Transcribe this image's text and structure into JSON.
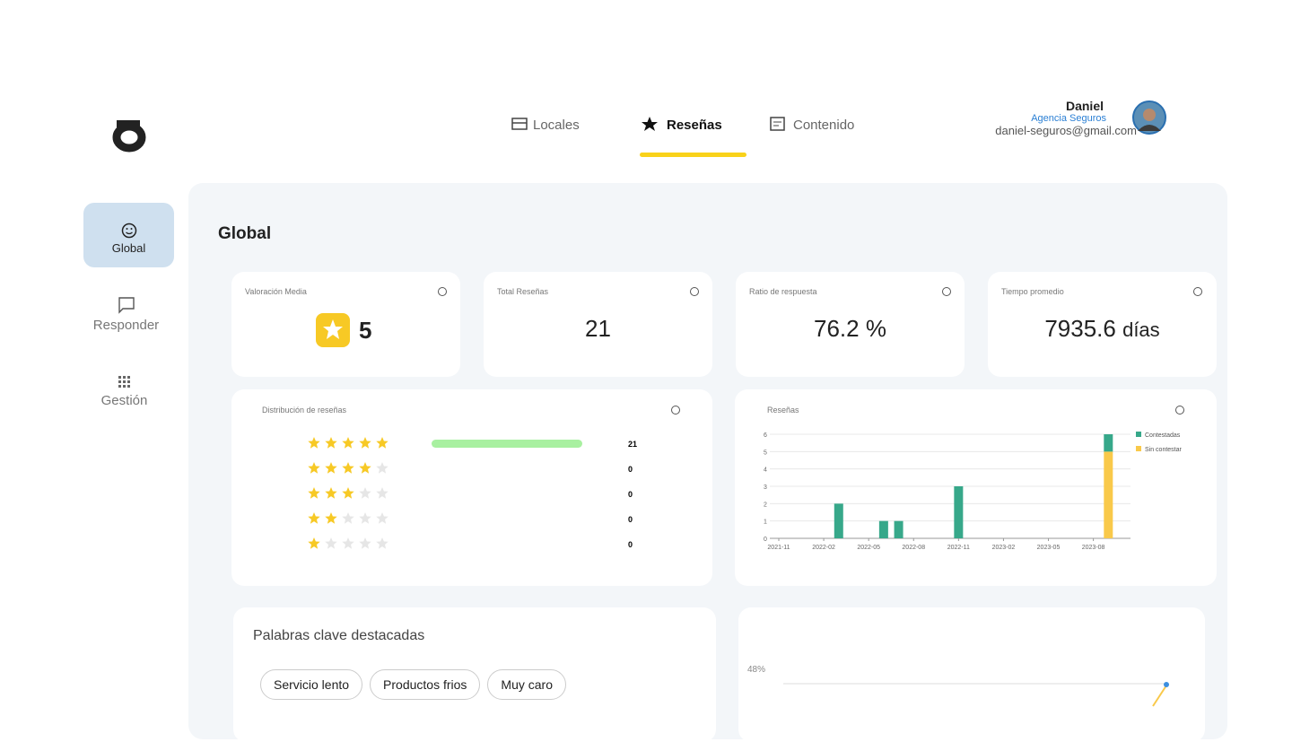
{
  "nav": {
    "tabs": [
      "Locales",
      "Reseñas",
      "Contenido"
    ],
    "active": 1
  },
  "user": {
    "name": "Daniel",
    "company": "Agencia Seguros",
    "email": "daniel-seguros@gmail.com"
  },
  "sidebar": {
    "items": [
      "Global",
      "Responder",
      "Gestión"
    ],
    "active": 0
  },
  "page": {
    "title": "Global"
  },
  "kpis": [
    {
      "label": "Valoración Media",
      "value": "5"
    },
    {
      "label": "Total Reseñas",
      "value": "21"
    },
    {
      "label": "Ratio de respuesta",
      "value": "76.2 %"
    },
    {
      "label": "Tiempo promedio",
      "value": "7935.6",
      "unit": "días"
    }
  ],
  "distribution": {
    "title": "Distribución de reseñas",
    "rows": [
      {
        "stars": 5,
        "count": 21
      },
      {
        "stars": 4,
        "count": 0
      },
      {
        "stars": 3,
        "count": 0
      },
      {
        "stars": 2,
        "count": 0
      },
      {
        "stars": 1,
        "count": 0
      }
    ]
  },
  "chart_data": {
    "type": "bar",
    "stacked": true,
    "title": "Reseñas",
    "x": [
      "2022-03",
      "2022-06",
      "2022-07",
      "2022-11",
      "2023-09"
    ],
    "series": [
      {
        "name": "Contestadas",
        "color": "#37a88a",
        "values": [
          2,
          1,
          1,
          3,
          1
        ]
      },
      {
        "name": "Sin contestar",
        "color": "#f9c94a",
        "values": [
          0,
          0,
          0,
          0,
          5
        ]
      }
    ],
    "xlim": [
      "2021-11",
      "2023-10"
    ],
    "xticks": [
      "2021-11",
      "2022-02",
      "2022-05",
      "2022-08",
      "2022-11",
      "2023-02",
      "2023-05",
      "2023-08"
    ],
    "ylim": [
      0,
      6
    ],
    "yticks": [
      0,
      1,
      2,
      3,
      4,
      5,
      6
    ],
    "grid": true,
    "legend": "upper right"
  },
  "keywords": {
    "title": "Palabras clave destacadas",
    "items": [
      "Servicio lento",
      "Productos frios",
      "Muy caro"
    ]
  },
  "trend": {
    "label": "48%"
  }
}
